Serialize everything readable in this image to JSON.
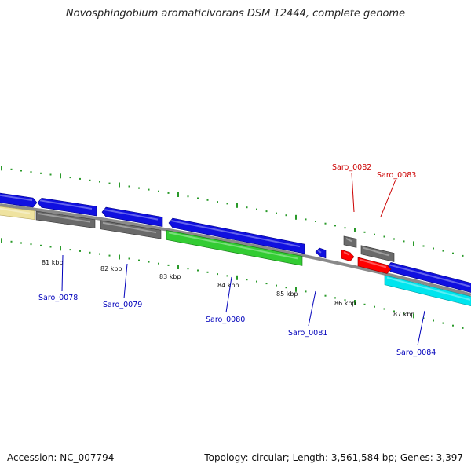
{
  "title": "Novosphingobium aromaticivorans DSM 12444, complete genome",
  "footer": {
    "accession": "Accession: NC_007794",
    "topology": "Topology: circular; Length: 3,561,584 bp; Genes: 3,397"
  },
  "colors": {
    "forward_cds": "#1010e0",
    "reverse_cds": "#1010e0",
    "rna_red": "#ff0000",
    "gene_gray": "#6a6a6a",
    "cds_green": "#33cc33",
    "cds_cyan": "#00e5ee",
    "cds_tan": "#efe3a0",
    "tick_green": "#2a9a2a",
    "label_blue": "#0000bb",
    "label_red": "#cc0000",
    "backbone": "#8a8a8a"
  },
  "scale_labels": [
    "81 kbp",
    "82 kbp",
    "83 kbp",
    "84 kbp",
    "85 kbp",
    "86 kbp",
    "87 kbp"
  ],
  "gene_labels": [
    {
      "name": "Saro_0078",
      "color": "blue"
    },
    {
      "name": "Saro_0079",
      "color": "blue"
    },
    {
      "name": "Saro_0080",
      "color": "blue"
    },
    {
      "name": "Saro_0081",
      "color": "blue"
    },
    {
      "name": "Saro_0082",
      "color": "red"
    },
    {
      "name": "Saro_0083",
      "color": "red"
    },
    {
      "name": "Saro_0084",
      "color": "blue"
    }
  ]
}
